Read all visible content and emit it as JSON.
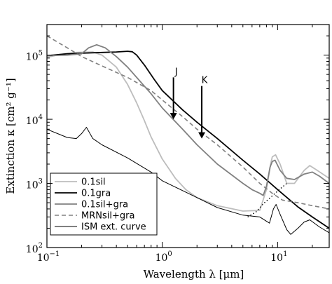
{
  "chart_data": {
    "type": "line",
    "title": "",
    "xlabel": "Wavelength λ [μm]",
    "ylabel": "Extinction κ [cm² g⁻¹]",
    "xscale": "log",
    "yscale": "log",
    "xlim": [
      0.1,
      28
    ],
    "ylim": [
      100,
      300000
    ],
    "grid": false,
    "legend_position": "lower-left",
    "x_ticks": [
      {
        "value": 0.1,
        "base": "10",
        "exp": "−1"
      },
      {
        "value": 1,
        "base": "10",
        "exp": "0"
      },
      {
        "value": 10,
        "base": "10",
        "exp": "1"
      }
    ],
    "y_ticks": [
      {
        "value": 100,
        "base": "10",
        "exp": "2"
      },
      {
        "value": 1000,
        "base": "10",
        "exp": "3"
      },
      {
        "value": 10000,
        "base": "10",
        "exp": "4"
      },
      {
        "value": 100000,
        "base": "10",
        "exp": "5"
      }
    ],
    "series": [
      {
        "name": "0.1sil",
        "color": "#bdbdbd",
        "width": 1.8,
        "dash": "",
        "points": [
          [
            0.1,
            92000
          ],
          [
            0.13,
            102000
          ],
          [
            0.18,
            110000
          ],
          [
            0.25,
            112000
          ],
          [
            0.3,
            100000
          ],
          [
            0.4,
            65000
          ],
          [
            0.5,
            35000
          ],
          [
            0.6,
            18000
          ],
          [
            0.7,
            9500
          ],
          [
            0.8,
            5300
          ],
          [
            1.0,
            2400
          ],
          [
            1.3,
            1200
          ],
          [
            1.6,
            800
          ],
          [
            2.0,
            600
          ],
          [
            3.0,
            450
          ],
          [
            5.0,
            370
          ],
          [
            7.0,
            380
          ],
          [
            8.0,
            800
          ],
          [
            8.7,
            2000
          ],
          [
            9.0,
            2600
          ],
          [
            9.6,
            2800
          ],
          [
            10.5,
            2000
          ],
          [
            12.0,
            1000
          ],
          [
            14.0,
            1000
          ],
          [
            17.0,
            1600
          ],
          [
            19.0,
            1900
          ],
          [
            22.0,
            1600
          ],
          [
            28.0,
            1200
          ]
        ]
      },
      {
        "name": "0.1gra",
        "color": "#000000",
        "width": 1.8,
        "dash": "",
        "points": [
          [
            0.1,
            98000
          ],
          [
            0.15,
            105000
          ],
          [
            0.22,
            108000
          ],
          [
            0.3,
            110000
          ],
          [
            0.4,
            112000
          ],
          [
            0.5,
            115000
          ],
          [
            0.55,
            113000
          ],
          [
            0.6,
            100000
          ],
          [
            0.7,
            70000
          ],
          [
            0.85,
            42000
          ],
          [
            1.0,
            28000
          ],
          [
            1.5,
            14000
          ],
          [
            2.0,
            9000
          ],
          [
            3.0,
            5000
          ],
          [
            5.0,
            2300
          ],
          [
            7.0,
            1400
          ],
          [
            10.0,
            800
          ],
          [
            15.0,
            430
          ],
          [
            20.0,
            300
          ],
          [
            28.0,
            200
          ]
        ]
      },
      {
        "name": "0.1sil+gra",
        "color": "#808080",
        "width": 1.8,
        "dash": "",
        "points": [
          [
            0.1,
            98000
          ],
          [
            0.15,
            100000
          ],
          [
            0.2,
            105000
          ],
          [
            0.23,
            130000
          ],
          [
            0.27,
            145000
          ],
          [
            0.32,
            130000
          ],
          [
            0.4,
            95000
          ],
          [
            0.5,
            65000
          ],
          [
            0.6,
            45000
          ],
          [
            0.8,
            25000
          ],
          [
            1.0,
            15000
          ],
          [
            1.5,
            7000
          ],
          [
            2.0,
            4000
          ],
          [
            3.0,
            2000
          ],
          [
            5.0,
            1000
          ],
          [
            6.0,
            800
          ],
          [
            7.0,
            700
          ],
          [
            7.5,
            650
          ],
          [
            8.0,
            900
          ],
          [
            8.6,
            1800
          ],
          [
            9.0,
            2200
          ],
          [
            9.5,
            2300
          ],
          [
            10.5,
            1600
          ],
          [
            12.0,
            1200
          ],
          [
            14.0,
            1150
          ],
          [
            17.0,
            1400
          ],
          [
            20.0,
            1500
          ],
          [
            23.0,
            1300
          ],
          [
            28.0,
            1000
          ]
        ]
      },
      {
        "name": "MRNsil+gra",
        "color": "#808080",
        "width": 1.6,
        "dash": "6,4",
        "points": [
          [
            0.1,
            200000
          ],
          [
            0.15,
            130000
          ],
          [
            0.2,
            95000
          ],
          [
            0.3,
            68000
          ],
          [
            0.5,
            45000
          ],
          [
            0.8,
            28000
          ],
          [
            1.0,
            20000
          ],
          [
            1.5,
            11000
          ],
          [
            2.0,
            7000
          ],
          [
            3.0,
            4000
          ],
          [
            5.0,
            1800
          ],
          [
            7.0,
            1000
          ],
          [
            9.0,
            700
          ],
          [
            11.0,
            550
          ],
          [
            15.0,
            500
          ],
          [
            20.0,
            450
          ],
          [
            28.0,
            400
          ]
        ]
      },
      {
        "name": "ISM ext. curve",
        "color": "#000000",
        "width": 1.0,
        "dash": "",
        "points": [
          [
            0.1,
            7000
          ],
          [
            0.15,
            5200
          ],
          [
            0.18,
            5000
          ],
          [
            0.2,
            6000
          ],
          [
            0.22,
            7500
          ],
          [
            0.25,
            5000
          ],
          [
            0.3,
            4000
          ],
          [
            0.5,
            2500
          ],
          [
            0.8,
            1500
          ],
          [
            1.0,
            1100
          ],
          [
            2.0,
            600
          ],
          [
            3.0,
            420
          ],
          [
            5.0,
            320
          ],
          [
            7.0,
            300
          ],
          [
            8.5,
            240
          ],
          [
            9.2,
            400
          ],
          [
            9.7,
            470
          ],
          [
            10.5,
            330
          ],
          [
            12.0,
            190
          ],
          [
            13.0,
            160
          ],
          [
            15.0,
            200
          ],
          [
            17.0,
            250
          ],
          [
            19.0,
            270
          ],
          [
            23.0,
            210
          ],
          [
            28.0,
            170
          ]
        ]
      },
      {
        "name": "",
        "color": "#000000",
        "width": 1.4,
        "dash": "1.5,3",
        "points": [
          [
            5.5,
            300
          ],
          [
            6.5,
            360
          ],
          [
            7.5,
            480
          ],
          [
            9.0,
            640
          ],
          [
            10.5,
            820
          ],
          [
            12.0,
            1000
          ]
        ]
      }
    ],
    "annotations": [
      {
        "label": "J",
        "x": 1.25,
        "y_top": 45000,
        "y_bottom": 10000
      },
      {
        "label": "K",
        "x": 2.2,
        "y_top": 33000,
        "y_bottom": 5000
      }
    ]
  }
}
